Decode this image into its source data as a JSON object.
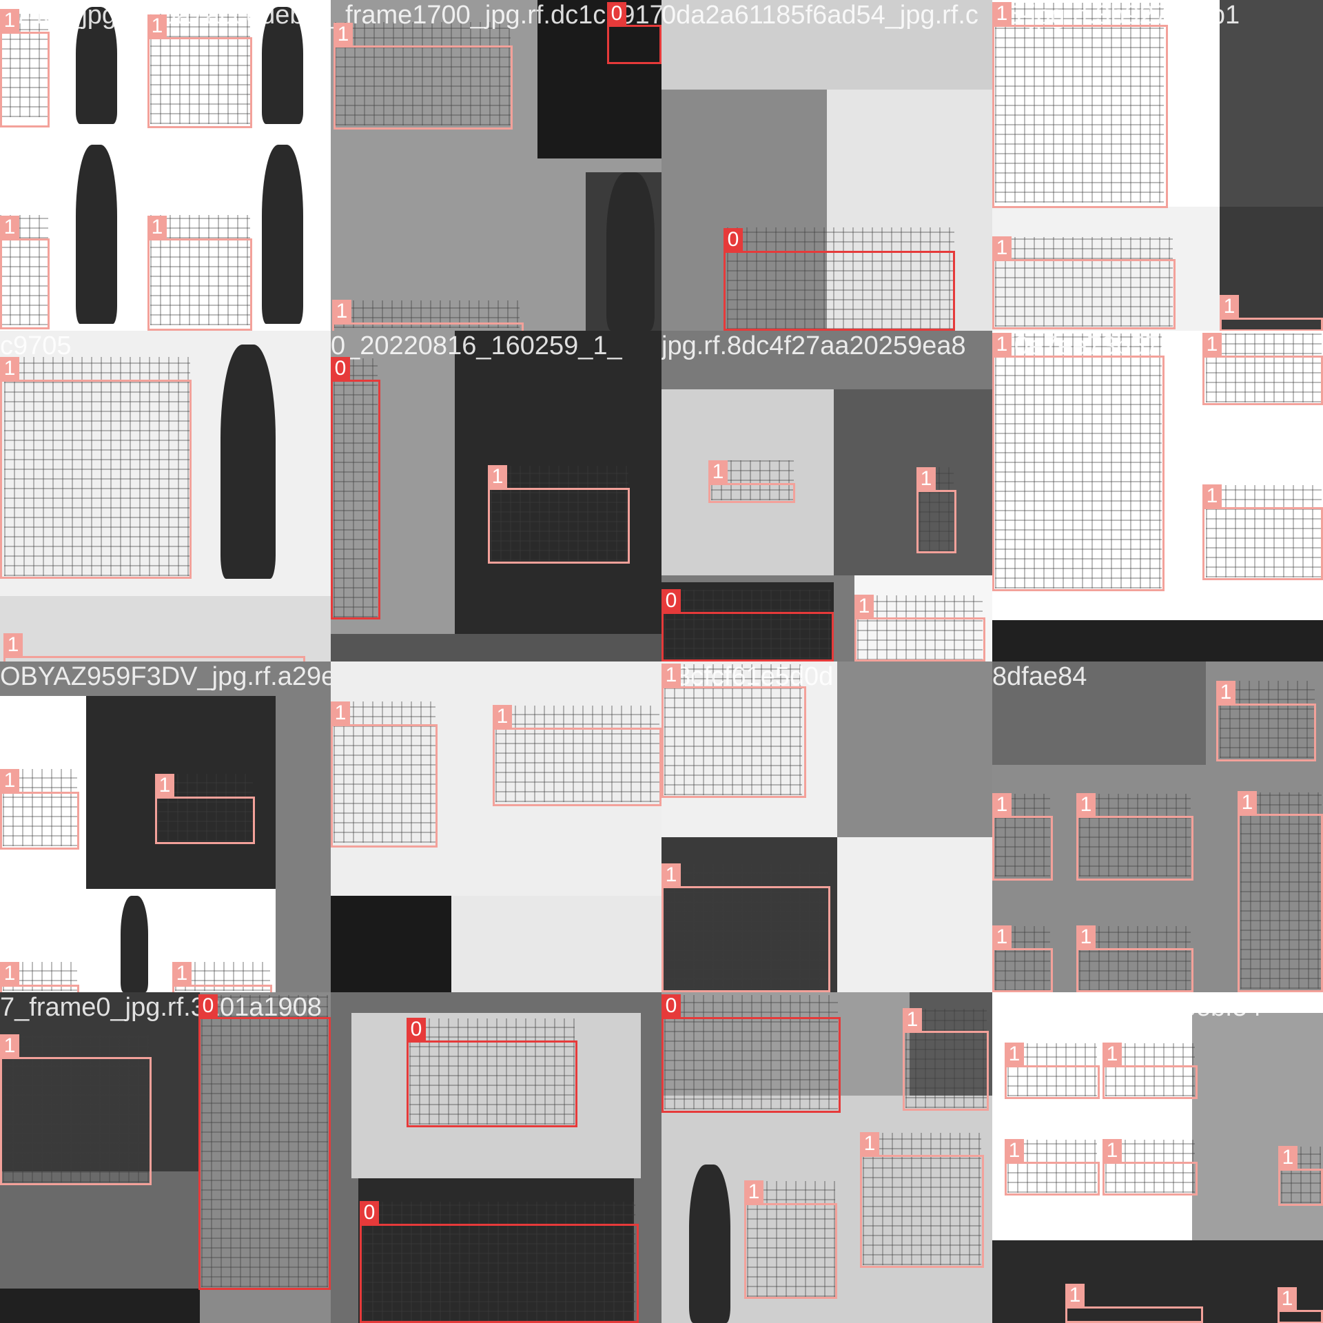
{
  "mosaic": {
    "tiles": [
      {
        "name": "tile-r0-c0",
        "caption": "1745-_jpg.rf.65a7accedeb",
        "bg": "#ffffff",
        "boxes": [
          {
            "cls": "1",
            "label": "1"
          },
          {
            "cls": "1",
            "label": "1"
          },
          {
            "cls": "1",
            "label": "1"
          },
          {
            "cls": "1",
            "label": "1"
          }
        ]
      },
      {
        "name": "tile-r0-c1",
        "caption": "_frame1700_jpg.rf.dc1cb9170",
        "bg": "#9a9a9a",
        "boxes": [
          {
            "cls": "1",
            "label": "1"
          },
          {
            "cls": "0",
            "label": "0"
          },
          {
            "cls": "1",
            "label": "1"
          }
        ]
      },
      {
        "name": "tile-r0-c2",
        "caption": "0da2a61185f6ad54_jpg.rf.c",
        "bg": "#bdbdbd",
        "boxes": [
          {
            "cls": "0",
            "label": "0"
          }
        ]
      },
      {
        "name": "tile-r0-c3",
        "caption": "35-jpg.rf.3b9274ecb1",
        "bg": "#d9d9d9",
        "boxes": [
          {
            "cls": "1",
            "label": "1"
          },
          {
            "cls": "1",
            "label": "1"
          },
          {
            "cls": "1",
            "label": "1"
          }
        ]
      },
      {
        "name": "tile-r1-c0",
        "caption": "c9705",
        "bg": "#f0f0f0",
        "boxes": [
          {
            "cls": "1",
            "label": "1"
          },
          {
            "cls": "1",
            "label": "1"
          }
        ]
      },
      {
        "name": "tile-r1-c1",
        "caption": "0_20220816_160259_1_",
        "bg": "#2a2a2a",
        "boxes": [
          {
            "cls": "0",
            "label": "0"
          },
          {
            "cls": "1",
            "label": "1"
          }
        ]
      },
      {
        "name": "tile-r1-c2",
        "caption": "jpg.rf.8dc4f27aa20259ea8",
        "bg": "#7a7a7a",
        "boxes": [
          {
            "cls": "1",
            "label": "1"
          },
          {
            "cls": "1",
            "label": "1"
          },
          {
            "cls": "0",
            "label": "0"
          },
          {
            "cls": "1",
            "label": "1"
          }
        ]
      },
      {
        "name": "tile-r1-c3",
        "caption": "bf0e7ee73b5746c",
        "bg": "#ffffff",
        "boxes": [
          {
            "cls": "1",
            "label": "1"
          },
          {
            "cls": "1",
            "label": "1"
          },
          {
            "cls": "1",
            "label": "1"
          }
        ]
      },
      {
        "name": "tile-r2-c0",
        "caption": "OBYAZ959F3DV_jpg.rf.a29e",
        "bg": "#7f7f7f",
        "boxes": [
          {
            "cls": "1",
            "label": "1"
          },
          {
            "cls": "1",
            "label": "1"
          },
          {
            "cls": "1",
            "label": "1"
          },
          {
            "cls": "1",
            "label": "1"
          }
        ]
      },
      {
        "name": "tile-r2-c1",
        "caption": "",
        "bg": "#eeeeee",
        "boxes": [
          {
            "cls": "1",
            "label": "1"
          },
          {
            "cls": "1",
            "label": "1"
          }
        ]
      },
      {
        "name": "tile-r2-c2",
        "caption": "98cfcf61e5d0d",
        "bg": "#a9a9a9",
        "boxes": [
          {
            "cls": "1",
            "label": "1"
          },
          {
            "cls": "1",
            "label": "1"
          }
        ]
      },
      {
        "name": "tile-r2-c3",
        "caption": "8dfae84",
        "bg": "#8c8c8c",
        "boxes": [
          {
            "cls": "1",
            "label": "1"
          },
          {
            "cls": "1",
            "label": "1"
          },
          {
            "cls": "1",
            "label": "1"
          },
          {
            "cls": "1",
            "label": "1"
          },
          {
            "cls": "1",
            "label": "1"
          },
          {
            "cls": "1",
            "label": "1"
          }
        ]
      },
      {
        "name": "tile-r3-c0",
        "caption": "7_frame0_jpg.rf.3201a1908",
        "bg": "#3a3a3a",
        "boxes": [
          {
            "cls": "1",
            "label": "1"
          },
          {
            "cls": "0",
            "label": "0"
          }
        ]
      },
      {
        "name": "tile-r3-c1",
        "caption": "",
        "bg": "#6e6e6e",
        "boxes": [
          {
            "cls": "0",
            "label": "0"
          },
          {
            "cls": "0",
            "label": "0"
          }
        ]
      },
      {
        "name": "tile-r3-c2",
        "caption": "",
        "bg": "#9d9d9d",
        "boxes": [
          {
            "cls": "0",
            "label": "0"
          },
          {
            "cls": "1",
            "label": "1"
          },
          {
            "cls": "1",
            "label": "1"
          },
          {
            "cls": "1",
            "label": "1"
          }
        ]
      },
      {
        "name": "tile-r3-c3",
        "caption": "2eee40e46b5935ebf54",
        "bg": "#ffffff",
        "boxes": [
          {
            "cls": "1",
            "label": "1"
          },
          {
            "cls": "1",
            "label": "1"
          },
          {
            "cls": "1",
            "label": "1"
          },
          {
            "cls": "1",
            "label": "1"
          },
          {
            "cls": "1",
            "label": "1"
          },
          {
            "cls": "1",
            "label": "1"
          },
          {
            "cls": "1",
            "label": "1"
          }
        ]
      }
    ],
    "colors": {
      "class_0": "#e63a3a",
      "class_1": "#f3a19a"
    }
  }
}
